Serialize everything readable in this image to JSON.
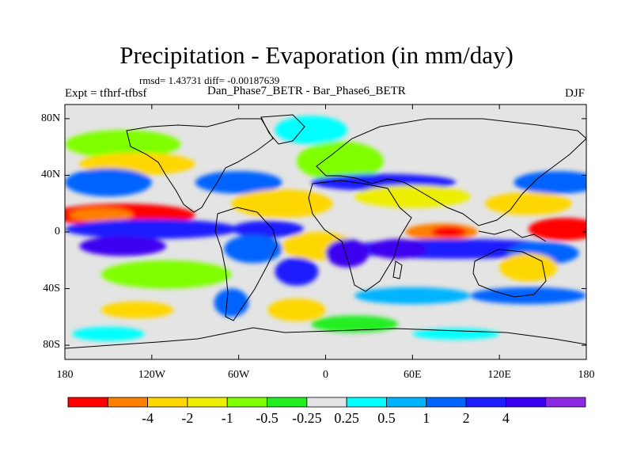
{
  "figure": {
    "title": "Precipitation - Evaporation (in mm/day)",
    "stats": "rmsd= 1.43731 diff= -0.00187639",
    "expt": "Expt = tfhrf-tfbsf",
    "subtitle": "Dan_Phase7_BETR - Bar_Phase6_BETR",
    "season": "DJF"
  },
  "axes": {
    "lat_ticks": [
      {
        "value": 80,
        "label": "80N"
      },
      {
        "value": 40,
        "label": "40N"
      },
      {
        "value": 0,
        "label": "0"
      },
      {
        "value": -40,
        "label": "40S"
      },
      {
        "value": -80,
        "label": "80S"
      }
    ],
    "lon_ticks": [
      {
        "value": -180,
        "label": "180"
      },
      {
        "value": -120,
        "label": "120W"
      },
      {
        "value": -60,
        "label": "60W"
      },
      {
        "value": 0,
        "label": "0"
      },
      {
        "value": 60,
        "label": "60E"
      },
      {
        "value": 120,
        "label": "120E"
      },
      {
        "value": 180,
        "label": "180"
      }
    ],
    "lat_range": [
      -90,
      90
    ],
    "lon_range": [
      -180,
      180
    ]
  },
  "colorbar": {
    "colors": [
      "#ff0000",
      "#ff7f00",
      "#ffd700",
      "#eeee00",
      "#7fff00",
      "#22ee22",
      "#e4e4e4",
      "#00ffff",
      "#00b4ff",
      "#0064ff",
      "#1e1eff",
      "#3c00f0",
      "#8a2be2"
    ],
    "labels": [
      "-4",
      "-2",
      "-1",
      "-0.5",
      "-0.25",
      "0.25",
      "0.5",
      "1",
      "2",
      "4"
    ]
  },
  "map_regions": [
    {
      "lon": -10,
      "lat": 72,
      "rx": 25,
      "ry": 10,
      "color": "#00ffff"
    },
    {
      "lon": 10,
      "lat": 50,
      "rx": 30,
      "ry": 14,
      "color": "#7fff00"
    },
    {
      "lon": -140,
      "lat": 62,
      "rx": 40,
      "ry": 10,
      "color": "#7fff00"
    },
    {
      "lon": -130,
      "lat": 48,
      "rx": 40,
      "ry": 8,
      "color": "#ffd700"
    },
    {
      "lon": -150,
      "lat": 35,
      "rx": 30,
      "ry": 10,
      "color": "#0064ff"
    },
    {
      "lon": -60,
      "lat": 35,
      "rx": 30,
      "ry": 8,
      "color": "#0064ff"
    },
    {
      "lon": 160,
      "lat": 35,
      "rx": 30,
      "ry": 8,
      "color": "#0064ff"
    },
    {
      "lon": 40,
      "lat": 35,
      "rx": 50,
      "ry": 6,
      "color": "#1e1eff"
    },
    {
      "lon": -30,
      "lat": 20,
      "rx": 35,
      "ry": 10,
      "color": "#ffd700"
    },
    {
      "lon": 60,
      "lat": 25,
      "rx": 40,
      "ry": 8,
      "color": "#eeee00"
    },
    {
      "lon": 140,
      "lat": 20,
      "rx": 30,
      "ry": 8,
      "color": "#ffd700"
    },
    {
      "lon": -140,
      "lat": 12,
      "rx": 50,
      "ry": 8,
      "color": "#ff0000"
    },
    {
      "lon": -155,
      "lat": 12,
      "rx": 22,
      "ry": 5,
      "color": "#ff7f00"
    },
    {
      "lon": -120,
      "lat": 2,
      "rx": 60,
      "ry": 7,
      "color": "#1e1eff"
    },
    {
      "lon": -140,
      "lat": -10,
      "rx": 30,
      "ry": 7,
      "color": "#3c00f0"
    },
    {
      "lon": -40,
      "lat": 2,
      "rx": 25,
      "ry": 6,
      "color": "#1e1eff"
    },
    {
      "lon": -50,
      "lat": -12,
      "rx": 20,
      "ry": 10,
      "color": "#0064ff"
    },
    {
      "lon": -5,
      "lat": -10,
      "rx": 25,
      "ry": 10,
      "color": "#ffd700"
    },
    {
      "lon": 80,
      "lat": 0,
      "rx": 25,
      "ry": 6,
      "color": "#ff7f00"
    },
    {
      "lon": 85,
      "lat": 0,
      "rx": 12,
      "ry": 4,
      "color": "#ff0000"
    },
    {
      "lon": 165,
      "lat": 2,
      "rx": 25,
      "ry": 8,
      "color": "#ff0000"
    },
    {
      "lon": 90,
      "lat": -12,
      "rx": 80,
      "ry": 7,
      "color": "#1e1eff"
    },
    {
      "lon": 50,
      "lat": -12,
      "rx": 20,
      "ry": 7,
      "color": "#3c00f0"
    },
    {
      "lon": 15,
      "lat": -15,
      "rx": 15,
      "ry": 10,
      "color": "#3c00f0"
    },
    {
      "lon": 150,
      "lat": -15,
      "rx": 25,
      "ry": 8,
      "color": "#0064ff"
    },
    {
      "lon": -20,
      "lat": -28,
      "rx": 15,
      "ry": 10,
      "color": "#1e1eff"
    },
    {
      "lon": 140,
      "lat": -25,
      "rx": 20,
      "ry": 10,
      "color": "#ffd700"
    },
    {
      "lon": -110,
      "lat": -30,
      "rx": 45,
      "ry": 10,
      "color": "#7fff00"
    },
    {
      "lon": -20,
      "lat": -55,
      "rx": 20,
      "ry": 8,
      "color": "#ffd700"
    },
    {
      "lon": -65,
      "lat": -50,
      "rx": 12,
      "ry": 10,
      "color": "#0064ff"
    },
    {
      "lon": 60,
      "lat": -45,
      "rx": 40,
      "ry": 6,
      "color": "#00b4ff"
    },
    {
      "lon": 140,
      "lat": -45,
      "rx": 40,
      "ry": 6,
      "color": "#0064ff"
    },
    {
      "lon": -130,
      "lat": -55,
      "rx": 25,
      "ry": 6,
      "color": "#ffd700"
    },
    {
      "lon": 20,
      "lat": -65,
      "rx": 30,
      "ry": 6,
      "color": "#22ee22"
    },
    {
      "lon": -150,
      "lat": -72,
      "rx": 25,
      "ry": 5,
      "color": "#00ffff"
    },
    {
      "lon": 90,
      "lat": -72,
      "rx": 30,
      "ry": 4,
      "color": "#00ffff"
    }
  ]
}
